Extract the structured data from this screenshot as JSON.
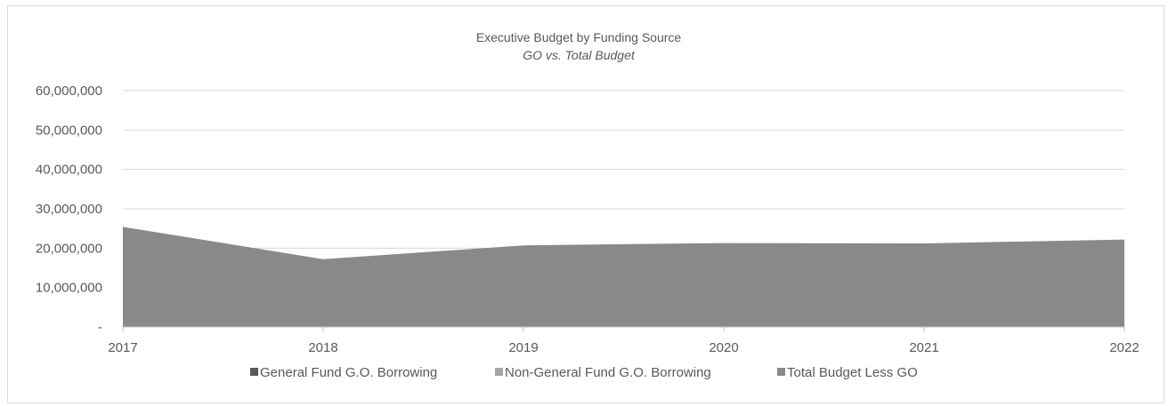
{
  "chart_data": {
    "type": "area",
    "title": "Executive Budget by Funding Source",
    "subtitle": "GO vs. Total Budget",
    "xlabel": "",
    "ylabel": "",
    "categories": [
      "2017",
      "2018",
      "2019",
      "2020",
      "2021",
      "2022"
    ],
    "ylim": [
      0,
      60000000
    ],
    "y_ticks": [
      0,
      10000000,
      20000000,
      30000000,
      40000000,
      50000000,
      60000000
    ],
    "y_tick_labels": [
      "-",
      "10,000,000",
      "20,000,000",
      "30,000,000",
      "40,000,000",
      "50,000,000",
      "60,000,000"
    ],
    "stacked": true,
    "grid": true,
    "legend_position": "bottom",
    "series": [
      {
        "name": "General Fund G.O. Borrowing",
        "color": "#595959",
        "values": [
          0,
          0,
          0,
          0,
          0,
          0
        ]
      },
      {
        "name": "Non-General Fund G.O. Borrowing",
        "color": "#a6a6a6",
        "values": [
          0,
          0,
          0,
          0,
          0,
          0
        ]
      },
      {
        "name": "Total Budget Less GO",
        "color": "#898989",
        "values": [
          25400000,
          17200000,
          20700000,
          21300000,
          21200000,
          22200000
        ]
      }
    ]
  }
}
